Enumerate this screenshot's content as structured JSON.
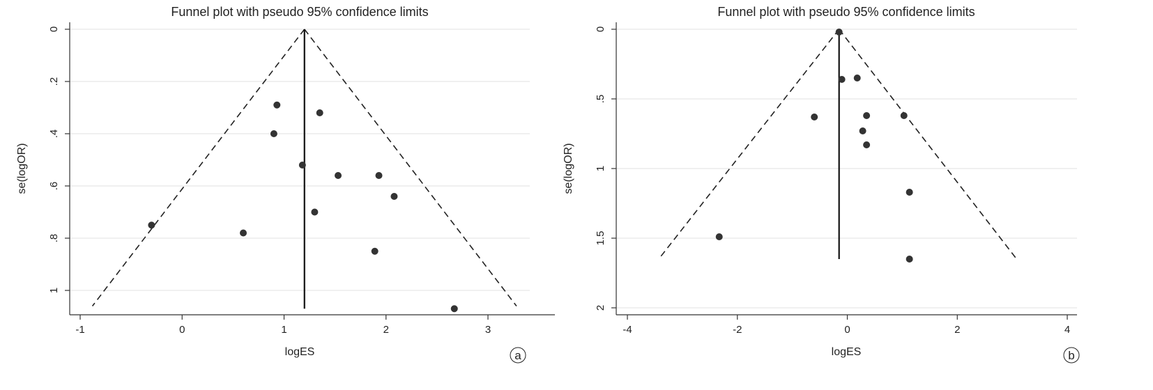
{
  "chart_data": [
    {
      "panel": "a",
      "type": "scatter",
      "title": "Funnel plot with pseudo 95% confidence limits",
      "xlabel": "logES",
      "ylabel": "se(logOR)",
      "xlim": [
        -1.1,
        3.4
      ],
      "ylim": [
        0,
        1.07
      ],
      "y_reversed": true,
      "xticks": [
        -1,
        0,
        1,
        2,
        3
      ],
      "xtick_labels": [
        "-1",
        "0",
        "1",
        "2",
        "3"
      ],
      "yticks": [
        0,
        0.2,
        0.4,
        0.6,
        0.8,
        1
      ],
      "ytick_labels": [
        "0",
        ".2",
        ".4",
        ".6",
        ".8",
        "1"
      ],
      "grid": "horizontal",
      "summary_line": {
        "x": 1.2,
        "y_from": 0,
        "y_to": 1.07
      },
      "pseudo_ci": {
        "apex": [
          1.2,
          0
        ],
        "left_end": [
          -0.88,
          1.06
        ],
        "right_end": [
          3.28,
          1.06
        ]
      },
      "points": [
        {
          "x": 0.93,
          "y": 0.29
        },
        {
          "x": 1.35,
          "y": 0.32
        },
        {
          "x": 0.9,
          "y": 0.4
        },
        {
          "x": 1.18,
          "y": 0.52
        },
        {
          "x": 1.53,
          "y": 0.56
        },
        {
          "x": 1.93,
          "y": 0.56
        },
        {
          "x": 2.08,
          "y": 0.64
        },
        {
          "x": 1.3,
          "y": 0.7
        },
        {
          "x": -0.3,
          "y": 0.75
        },
        {
          "x": 0.6,
          "y": 0.78
        },
        {
          "x": 1.89,
          "y": 0.85
        },
        {
          "x": 2.67,
          "y": 1.07
        }
      ],
      "corner_label": "a"
    },
    {
      "panel": "b",
      "type": "scatter",
      "title": "Funnel plot with pseudo 95% confidence limits",
      "xlabel": "logES",
      "ylabel": "se(logOR)",
      "xlim": [
        -4.2,
        4.1
      ],
      "ylim": [
        0,
        2.04
      ],
      "y_reversed": true,
      "xticks": [
        -4,
        -2,
        0,
        2,
        4
      ],
      "xtick_labels": [
        "-4",
        "-2",
        "0",
        "2",
        "4"
      ],
      "yticks": [
        0,
        0.5,
        1,
        1.5,
        2
      ],
      "ytick_labels": [
        "0",
        ".5",
        "1",
        "1.5",
        "2"
      ],
      "grid": "horizontal",
      "summary_line": {
        "x": -0.15,
        "y_from": 0,
        "y_to": 1.65
      },
      "pseudo_ci": {
        "apex": [
          -0.15,
          0
        ],
        "left_end": [
          -3.43,
          1.65
        ],
        "right_end": [
          3.08,
          1.65
        ]
      },
      "points": [
        {
          "x": -0.15,
          "y": 0.02
        },
        {
          "x": -0.1,
          "y": 0.36
        },
        {
          "x": 0.18,
          "y": 0.35
        },
        {
          "x": -0.6,
          "y": 0.63
        },
        {
          "x": 0.35,
          "y": 0.62
        },
        {
          "x": 1.03,
          "y": 0.62
        },
        {
          "x": 0.28,
          "y": 0.73
        },
        {
          "x": 0.35,
          "y": 0.83
        },
        {
          "x": 1.13,
          "y": 1.17
        },
        {
          "x": -2.33,
          "y": 1.49
        },
        {
          "x": 1.13,
          "y": 1.65
        }
      ],
      "corner_label": "b"
    }
  ]
}
